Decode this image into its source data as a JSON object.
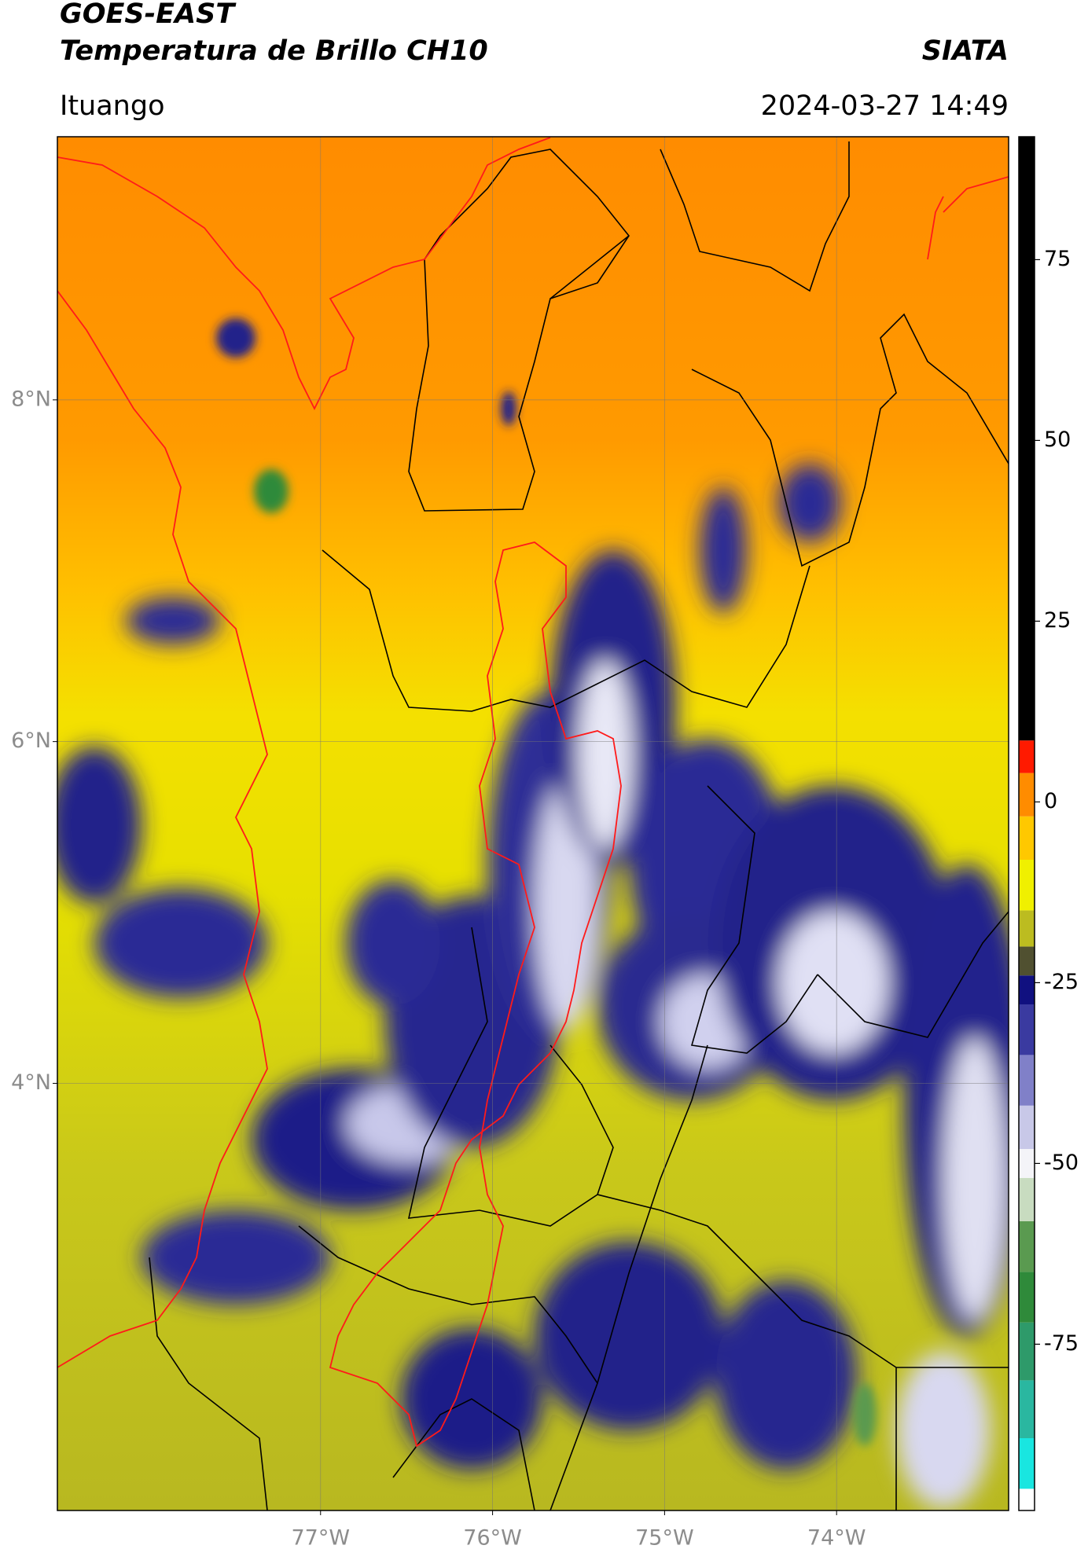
{
  "header": {
    "title": "GOES-EAST",
    "subtitle": "Temperatura de Brillo CH10",
    "brand": "SIATA",
    "location": "Ituango",
    "timestamp": "2024-03-27 14:49"
  },
  "map": {
    "lon_range": [
      -78.53,
      -73.0
    ],
    "lat_range": [
      1.5,
      9.54
    ],
    "grid": true,
    "lon_ticks": [
      {
        "value": -77,
        "label": "77°W"
      },
      {
        "value": -76,
        "label": "76°W"
      },
      {
        "value": -75,
        "label": "75°W"
      },
      {
        "value": -74,
        "label": "74°W"
      }
    ],
    "lat_ticks": [
      {
        "value": 8,
        "label": "8°N"
      },
      {
        "value": 6,
        "label": "6°N"
      },
      {
        "value": 4,
        "label": "4°N"
      }
    ]
  },
  "colorbar": {
    "range": [
      -98,
      92
    ],
    "ticks": [
      75,
      50,
      25,
      0,
      -25,
      -50,
      -75
    ],
    "levels": [
      -98,
      -95,
      -88,
      -80,
      -72,
      -65,
      -58,
      -52,
      -48,
      -42,
      -35,
      -28,
      -24,
      -20,
      -15,
      -8,
      -2,
      4,
      8.5,
      92
    ],
    "colors": [
      "#ffffff",
      "#19e6e0",
      "#2ab7a0",
      "#2e9a6a",
      "#2f8a3a",
      "#5a9a50",
      "#c8dcc0",
      "#f4f4f8",
      "#c8c8e8",
      "#8080c8",
      "#3a3aa0",
      "#101080",
      "#505030",
      "#bcbc20",
      "#f0f000",
      "#ffc800",
      "#ff8c00",
      "#ff1a00",
      "#000000"
    ]
  }
}
